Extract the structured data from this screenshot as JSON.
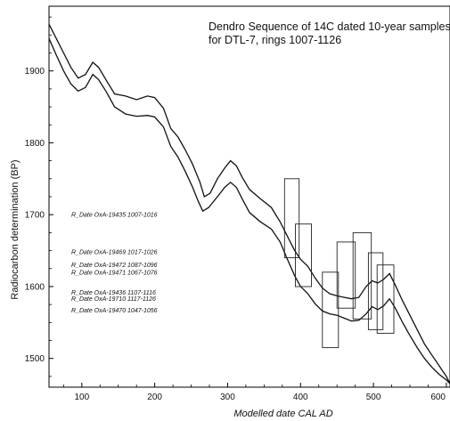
{
  "chart_data": {
    "type": "line",
    "title_lines": [
      "Dendro Sequence of 14C dated 10-year samples",
      "for DTL-7, rings 1007-1126"
    ],
    "xlabel": "Modelled date CAL AD",
    "ylabel": "Radiocarbon determination (BP)",
    "xlim": [
      55,
      605
    ],
    "ylim": [
      1460,
      1990
    ],
    "x_ticks": [
      100,
      200,
      300,
      400,
      500,
      600
    ],
    "y_ticks": [
      1500,
      1600,
      1700,
      1800,
      1900
    ],
    "grid": false,
    "series": [
      {
        "values": [
          [
            55,
            1965
          ],
          [
            65,
            1945
          ],
          [
            75,
            1925
          ],
          [
            85,
            1905
          ],
          [
            95,
            1890
          ],
          [
            105,
            1895
          ],
          [
            115,
            1912
          ],
          [
            123,
            1905
          ],
          [
            133,
            1888
          ],
          [
            145,
            1868
          ],
          [
            160,
            1865
          ],
          [
            175,
            1860
          ],
          [
            190,
            1865
          ],
          [
            200,
            1863
          ],
          [
            212,
            1848
          ],
          [
            222,
            1820
          ],
          [
            232,
            1808
          ],
          [
            242,
            1790
          ],
          [
            252,
            1770
          ],
          [
            262,
            1745
          ],
          [
            268,
            1725
          ],
          [
            276,
            1730
          ],
          [
            286,
            1750
          ],
          [
            296,
            1765
          ],
          [
            304,
            1775
          ],
          [
            312,
            1768
          ],
          [
            320,
            1752
          ],
          [
            330,
            1735
          ],
          [
            345,
            1722
          ],
          [
            360,
            1710
          ],
          [
            372,
            1690
          ],
          [
            382,
            1670
          ],
          [
            392,
            1650
          ],
          [
            400,
            1638
          ],
          [
            410,
            1628
          ],
          [
            420,
            1612
          ],
          [
            430,
            1598
          ],
          [
            440,
            1590
          ],
          [
            450,
            1587
          ],
          [
            460,
            1585
          ],
          [
            470,
            1583
          ],
          [
            480,
            1585
          ],
          [
            490,
            1600
          ],
          [
            498,
            1608
          ],
          [
            506,
            1605
          ],
          [
            514,
            1610
          ],
          [
            522,
            1618
          ],
          [
            530,
            1602
          ],
          [
            540,
            1580
          ],
          [
            550,
            1560
          ],
          [
            560,
            1540
          ],
          [
            570,
            1520
          ],
          [
            580,
            1505
          ],
          [
            590,
            1490
          ],
          [
            600,
            1475
          ],
          [
            605,
            1465
          ]
        ]
      },
      {
        "values": [
          [
            55,
            1945
          ],
          [
            65,
            1922
          ],
          [
            75,
            1900
          ],
          [
            85,
            1882
          ],
          [
            95,
            1872
          ],
          [
            105,
            1877
          ],
          [
            115,
            1895
          ],
          [
            123,
            1888
          ],
          [
            133,
            1872
          ],
          [
            145,
            1850
          ],
          [
            160,
            1840
          ],
          [
            175,
            1837
          ],
          [
            190,
            1838
          ],
          [
            200,
            1836
          ],
          [
            212,
            1822
          ],
          [
            222,
            1795
          ],
          [
            232,
            1780
          ],
          [
            242,
            1760
          ],
          [
            252,
            1738
          ],
          [
            260,
            1718
          ],
          [
            266,
            1705
          ],
          [
            274,
            1710
          ],
          [
            286,
            1725
          ],
          [
            296,
            1738
          ],
          [
            304,
            1745
          ],
          [
            312,
            1738
          ],
          [
            320,
            1722
          ],
          [
            330,
            1703
          ],
          [
            345,
            1690
          ],
          [
            360,
            1680
          ],
          [
            372,
            1662
          ],
          [
            382,
            1638
          ],
          [
            392,
            1615
          ],
          [
            400,
            1600
          ],
          [
            410,
            1590
          ],
          [
            420,
            1576
          ],
          [
            430,
            1566
          ],
          [
            440,
            1562
          ],
          [
            450,
            1560
          ],
          [
            460,
            1556
          ],
          [
            470,
            1552
          ],
          [
            480,
            1553
          ],
          [
            490,
            1562
          ],
          [
            498,
            1572
          ],
          [
            506,
            1568
          ],
          [
            514,
            1573
          ],
          [
            522,
            1583
          ],
          [
            530,
            1570
          ],
          [
            540,
            1550
          ],
          [
            550,
            1532
          ],
          [
            560,
            1515
          ],
          [
            570,
            1500
          ],
          [
            580,
            1488
          ],
          [
            590,
            1478
          ],
          [
            600,
            1470
          ],
          [
            605,
            1465
          ]
        ]
      }
    ],
    "samples": [
      {
        "label": "R_Date OxA-19435 1007-1016",
        "label_y": 1700,
        "box_x": [
          378,
          398
        ],
        "box_y": [
          1640,
          1750
        ]
      },
      {
        "label": "R_Date OxA-19469 1017-1026",
        "label_y": 1648,
        "box_x": [
          393,
          415
        ],
        "box_y": [
          1600,
          1687
        ]
      },
      {
        "label": "R_Date OxA-19472 1087-1096",
        "label_y": 1630,
        "box_x": [
          472,
          497
        ],
        "box_y": [
          1555,
          1675
        ]
      },
      {
        "label": "R_Date OxA-19471 1067-1076",
        "label_y": 1620,
        "box_x": [
          450,
          475
        ],
        "box_y": [
          1570,
          1662
        ]
      },
      {
        "label": "R_Date OxA-19436 1107-1116",
        "label_y": 1592,
        "box_x": [
          493,
          513
        ],
        "box_y": [
          1540,
          1647
        ]
      },
      {
        "label": "R_Date OxA-19710 1117-1126",
        "label_y": 1583,
        "box_x": [
          505,
          528
        ],
        "box_y": [
          1535,
          1630
        ]
      },
      {
        "label": "R_Date OxA-19470 1047-1056",
        "label_y": 1567,
        "box_x": [
          430,
          452
        ],
        "box_y": [
          1515,
          1620
        ]
      }
    ]
  }
}
